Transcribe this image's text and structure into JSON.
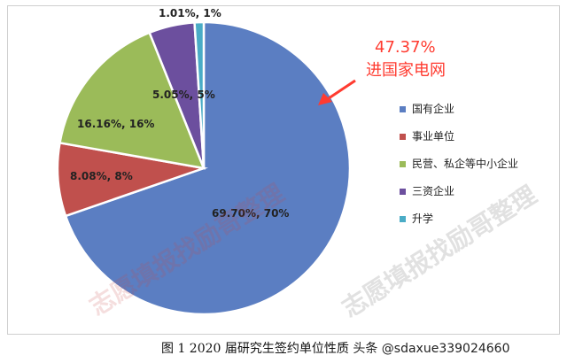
{
  "chart_data": {
    "type": "pie",
    "title": "",
    "slices": [
      {
        "name": "国有企业",
        "value": 69.7,
        "label": "69.70%, 70%",
        "color": "#5b7ec2"
      },
      {
        "name": "事业单位",
        "value": 8.08,
        "label": "8.08%, 8%",
        "color": "#c0504d"
      },
      {
        "name": "民营、私企等中小企业",
        "value": 16.16,
        "label": "16.16%, 16%",
        "color": "#9bbb59"
      },
      {
        "name": "三资企业",
        "value": 5.05,
        "label": "5.05%, 5%",
        "color": "#6c4f9e"
      },
      {
        "name": "升学",
        "value": 1.01,
        "label": "1.01%, 1%",
        "color": "#4aacc6"
      }
    ],
    "legend_position": "right"
  },
  "callout": {
    "percent": "47.37%",
    "text": "进国家电网",
    "color": "#ff3b30"
  },
  "watermark": {
    "text": "志愿填报找励哥整理"
  },
  "caption": {
    "figure_label": "图 1  2020 届研究生签约单位性质",
    "source_text": "头条 @sdaxue339024660"
  }
}
